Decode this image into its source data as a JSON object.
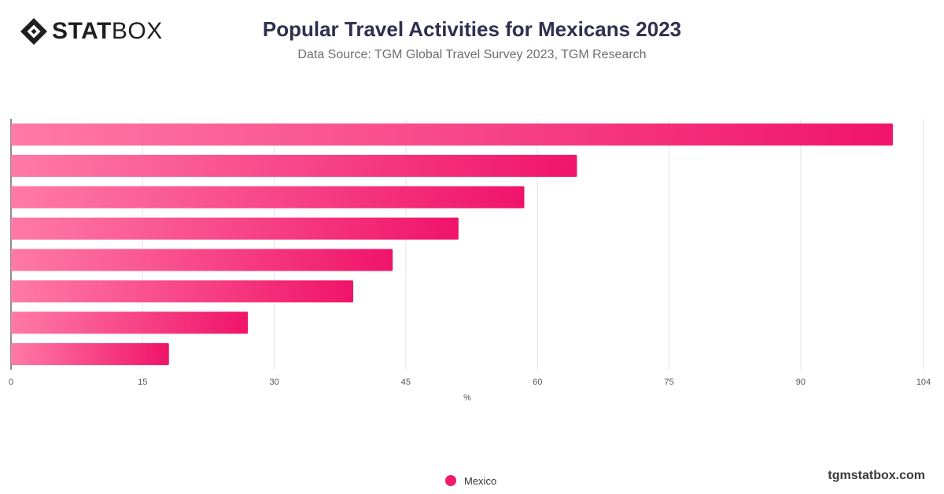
{
  "brand": {
    "logo_bold": "STAT",
    "logo_light": "BOX",
    "site": "tgmstatbox.com"
  },
  "header": {
    "title": "Popular Travel Activities for Mexicans 2023",
    "subtitle": "Data Source: TGM Global Travel Survey 2023, TGM Research"
  },
  "chart_data": {
    "type": "bar",
    "orientation": "horizontal",
    "title": "Popular Travel Activities for Mexicans 2023",
    "subtitle": "Data Source: TGM Global Travel Survey 2023, TGM Research",
    "xlabel": "%",
    "ylabel": "",
    "xlim": [
      0,
      104
    ],
    "xticks": [
      0,
      15,
      30,
      45,
      60,
      75,
      90,
      104
    ],
    "grid": true,
    "legend_position": "bottom",
    "series": [
      {
        "name": "Mexico",
        "color": "#f0196a",
        "values": [
          100.5,
          64.5,
          58.5,
          51,
          43.5,
          39,
          27,
          18
        ]
      }
    ]
  },
  "legend": {
    "items": [
      {
        "label": "Mexico",
        "color": "#f0196a"
      }
    ]
  }
}
